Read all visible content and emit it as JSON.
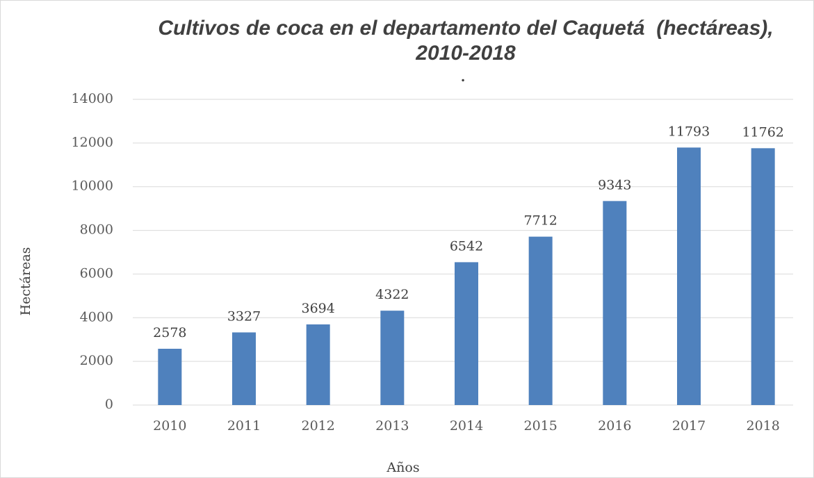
{
  "chart_data": {
    "type": "bar",
    "title": [
      "Cultivos de coca en el departamento del Caquetá  (hectáreas),",
      "2010-2018"
    ],
    "subtitle": ".",
    "x_label": "Años",
    "y_label": "Hectáreas",
    "categories": [
      "2010",
      "2011",
      "2012",
      "2013",
      "2014",
      "2015",
      "2016",
      "2017",
      "2018"
    ],
    "values": [
      2578,
      3327,
      3694,
      4322,
      6542,
      7712,
      9343,
      11793,
      11762
    ],
    "color": "#4f81bd",
    "ylim": [
      0,
      14000
    ],
    "yticks": [
      0,
      2000,
      4000,
      6000,
      8000,
      10000,
      12000,
      14000
    ],
    "grid": true
  }
}
